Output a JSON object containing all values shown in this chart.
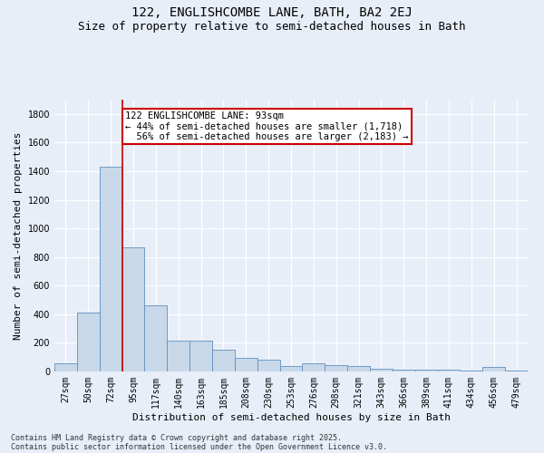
{
  "title": "122, ENGLISHCOMBE LANE, BATH, BA2 2EJ",
  "subtitle": "Size of property relative to semi-detached houses in Bath",
  "xlabel": "Distribution of semi-detached houses by size in Bath",
  "ylabel": "Number of semi-detached properties",
  "categories": [
    "27sqm",
    "50sqm",
    "72sqm",
    "95sqm",
    "117sqm",
    "140sqm",
    "163sqm",
    "185sqm",
    "208sqm",
    "230sqm",
    "253sqm",
    "276sqm",
    "298sqm",
    "321sqm",
    "343sqm",
    "366sqm",
    "389sqm",
    "411sqm",
    "434sqm",
    "456sqm",
    "479sqm"
  ],
  "values": [
    55,
    410,
    1430,
    870,
    460,
    215,
    215,
    155,
    95,
    85,
    40,
    55,
    45,
    35,
    20,
    15,
    10,
    15,
    8,
    30,
    5
  ],
  "bar_color": "#c8d8e8",
  "bar_edge_color": "#6090c0",
  "subject_label": "122 ENGLISHCOMBE LANE: 93sqm",
  "pct_smaller": 44,
  "pct_larger": 56,
  "n_smaller": 1718,
  "n_larger": 2183,
  "vline_color": "#cc0000",
  "annotation_box_color": "#cc0000",
  "ylim": [
    0,
    1900
  ],
  "yticks": [
    0,
    200,
    400,
    600,
    800,
    1000,
    1200,
    1400,
    1600,
    1800
  ],
  "footnote1": "Contains HM Land Registry data © Crown copyright and database right 2025.",
  "footnote2": "Contains public sector information licensed under the Open Government Licence v3.0.",
  "bg_color": "#e8eef8",
  "plot_bg_color": "#e8eef8",
  "grid_color": "#ffffff",
  "title_fontsize": 10,
  "subtitle_fontsize": 9,
  "axis_label_fontsize": 8,
  "tick_fontsize": 7,
  "annot_fontsize": 7.5,
  "footnote_fontsize": 6
}
